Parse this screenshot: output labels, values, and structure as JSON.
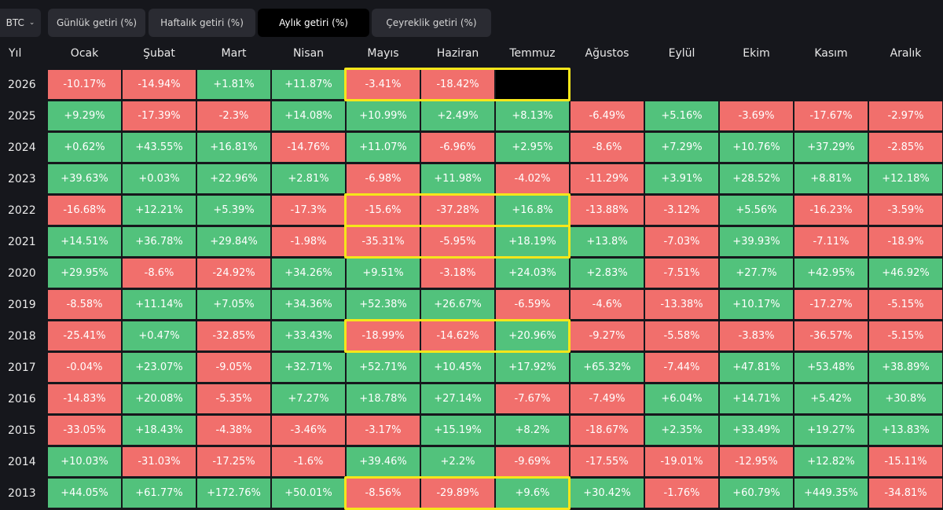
{
  "asset": {
    "value": "BTC"
  },
  "tabs": [
    {
      "label": "Günlük getiri (%)",
      "active": false
    },
    {
      "label": "Haftalık getiri (%)",
      "active": false
    },
    {
      "label": "Aylık getiri (%)",
      "active": true
    },
    {
      "label": "Çeyreklik getiri (%)",
      "active": false
    }
  ],
  "table": {
    "year_header": "Yıl",
    "months": [
      "Ocak",
      "Şubat",
      "Mart",
      "Nisan",
      "Mayıs",
      "Haziran",
      "Temmuz",
      "Ağustos",
      "Eylül",
      "Ekim",
      "Kasım",
      "Aralık"
    ],
    "rows": [
      {
        "year": "2026",
        "values": [
          "-10.17%",
          "-14.94%",
          "+1.81%",
          "+11.87%",
          "-3.41%",
          "-18.42%",
          "",
          "",
          "",
          "",
          "",
          ""
        ]
      },
      {
        "year": "2025",
        "values": [
          "+9.29%",
          "-17.39%",
          "-2.3%",
          "+14.08%",
          "+10.99%",
          "+2.49%",
          "+8.13%",
          "-6.49%",
          "+5.16%",
          "-3.69%",
          "-17.67%",
          "-2.97%"
        ]
      },
      {
        "year": "2024",
        "values": [
          "+0.62%",
          "+43.55%",
          "+16.81%",
          "-14.76%",
          "+11.07%",
          "-6.96%",
          "+2.95%",
          "-8.6%",
          "+7.29%",
          "+10.76%",
          "+37.29%",
          "-2.85%"
        ]
      },
      {
        "year": "2023",
        "values": [
          "+39.63%",
          "+0.03%",
          "+22.96%",
          "+2.81%",
          "-6.98%",
          "+11.98%",
          "-4.02%",
          "-11.29%",
          "+3.91%",
          "+28.52%",
          "+8.81%",
          "+12.18%"
        ]
      },
      {
        "year": "2022",
        "values": [
          "-16.68%",
          "+12.21%",
          "+5.39%",
          "-17.3%",
          "-15.6%",
          "-37.28%",
          "+16.8%",
          "-13.88%",
          "-3.12%",
          "+5.56%",
          "-16.23%",
          "-3.59%"
        ]
      },
      {
        "year": "2021",
        "values": [
          "+14.51%",
          "+36.78%",
          "+29.84%",
          "-1.98%",
          "-35.31%",
          "-5.95%",
          "+18.19%",
          "+13.8%",
          "-7.03%",
          "+39.93%",
          "-7.11%",
          "-18.9%"
        ]
      },
      {
        "year": "2020",
        "values": [
          "+29.95%",
          "-8.6%",
          "-24.92%",
          "+34.26%",
          "+9.51%",
          "-3.18%",
          "+24.03%",
          "+2.83%",
          "-7.51%",
          "+27.7%",
          "+42.95%",
          "+46.92%"
        ]
      },
      {
        "year": "2019",
        "values": [
          "-8.58%",
          "+11.14%",
          "+7.05%",
          "+34.36%",
          "+52.38%",
          "+26.67%",
          "-6.59%",
          "-4.6%",
          "-13.38%",
          "+10.17%",
          "-17.27%",
          "-5.15%"
        ]
      },
      {
        "year": "2018",
        "values": [
          "-25.41%",
          "+0.47%",
          "-32.85%",
          "+33.43%",
          "-18.99%",
          "-14.62%",
          "+20.96%",
          "-9.27%",
          "-5.58%",
          "-3.83%",
          "-36.57%",
          "-5.15%"
        ]
      },
      {
        "year": "2017",
        "values": [
          "-0.04%",
          "+23.07%",
          "-9.05%",
          "+32.71%",
          "+52.71%",
          "+10.45%",
          "+17.92%",
          "+65.32%",
          "-7.44%",
          "+47.81%",
          "+53.48%",
          "+38.89%"
        ]
      },
      {
        "year": "2016",
        "values": [
          "-14.83%",
          "+20.08%",
          "-5.35%",
          "+7.27%",
          "+18.78%",
          "+27.14%",
          "-7.67%",
          "-7.49%",
          "+6.04%",
          "+14.71%",
          "+5.42%",
          "+30.8%"
        ]
      },
      {
        "year": "2015",
        "values": [
          "-33.05%",
          "+18.43%",
          "-4.38%",
          "-3.46%",
          "-3.17%",
          "+15.19%",
          "+8.2%",
          "-18.67%",
          "+2.35%",
          "+33.49%",
          "+19.27%",
          "+13.83%"
        ]
      },
      {
        "year": "2014",
        "values": [
          "+10.03%",
          "-31.03%",
          "-17.25%",
          "-1.6%",
          "+39.46%",
          "+2.2%",
          "-9.69%",
          "-17.55%",
          "-19.01%",
          "-12.95%",
          "+12.82%",
          "-15.11%"
        ]
      },
      {
        "year": "2013",
        "values": [
          "+44.05%",
          "+61.77%",
          "+172.76%",
          "+50.01%",
          "-8.56%",
          "-29.89%",
          "+9.6%",
          "+30.42%",
          "-1.76%",
          "+60.79%",
          "+449.35%",
          "-34.81%"
        ]
      }
    ],
    "highlighted_years": [
      "2026",
      "2022",
      "2021",
      "2018",
      "2013"
    ]
  },
  "colors": {
    "positive": "#52c27c",
    "negative": "#f16f6c",
    "highlight": "#f5e61a",
    "background": "#16171c"
  }
}
